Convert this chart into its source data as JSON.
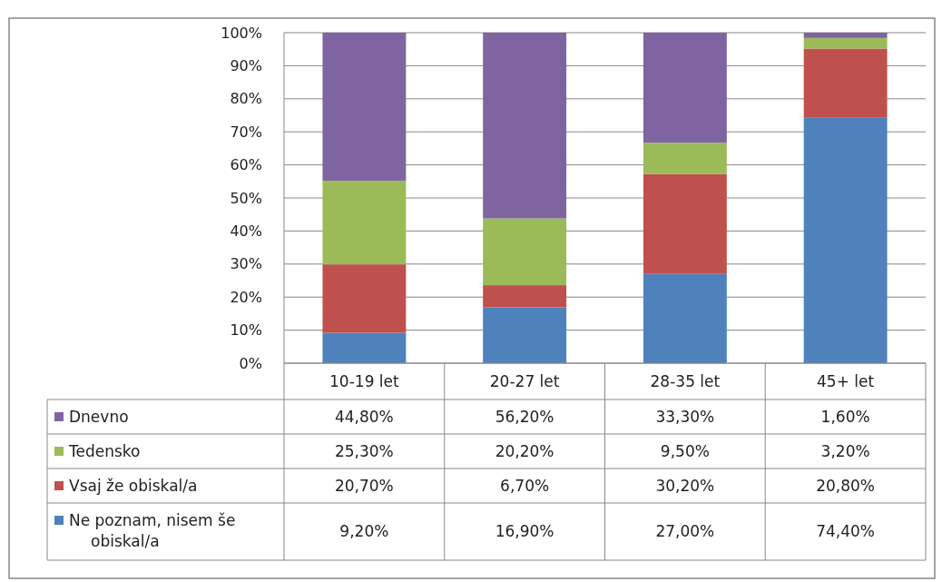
{
  "chart_data": {
    "type": "bar",
    "stacked": true,
    "categories": [
      "10-19 let",
      "20-27 let",
      "28-35 let",
      "45+ let"
    ],
    "series": [
      {
        "name": "Ne poznam, nisem še obiskal/a",
        "color": "#4f81bd",
        "values": [
          9.2,
          16.9,
          27.0,
          74.4
        ],
        "value_labels": [
          "9,20%",
          "16,90%",
          "27,00%",
          "74,40%"
        ]
      },
      {
        "name": "Vsaj že obiskal/a",
        "color": "#c0504d",
        "values": [
          20.7,
          6.7,
          30.2,
          20.8
        ],
        "value_labels": [
          "20,70%",
          "6,70%",
          "30,20%",
          "20,80%"
        ]
      },
      {
        "name": "Tedensko",
        "color": "#9bbb59",
        "values": [
          25.3,
          20.2,
          9.5,
          3.2
        ],
        "value_labels": [
          "25,30%",
          "20,20%",
          "9,50%",
          "3,20%"
        ]
      },
      {
        "name": "Dnevno",
        "color": "#8064a2",
        "values": [
          44.8,
          56.2,
          33.3,
          1.6
        ],
        "value_labels": [
          "44,80%",
          "56,20%",
          "33,30%",
          "1,60%"
        ]
      }
    ],
    "ylim": [
      0,
      100
    ],
    "yticks": [
      {
        "value": 0,
        "label": "0%"
      },
      {
        "value": 10,
        "label": "10%"
      },
      {
        "value": 20,
        "label": "20%"
      },
      {
        "value": 30,
        "label": "30%"
      },
      {
        "value": 40,
        "label": "40%"
      },
      {
        "value": 50,
        "label": "50%"
      },
      {
        "value": 60,
        "label": "60%"
      },
      {
        "value": 70,
        "label": "70%"
      },
      {
        "value": 80,
        "label": "80%"
      },
      {
        "value": 90,
        "label": "90%"
      },
      {
        "value": 100,
        "label": "100%"
      }
    ],
    "grid": "y",
    "legend": "bottom"
  }
}
